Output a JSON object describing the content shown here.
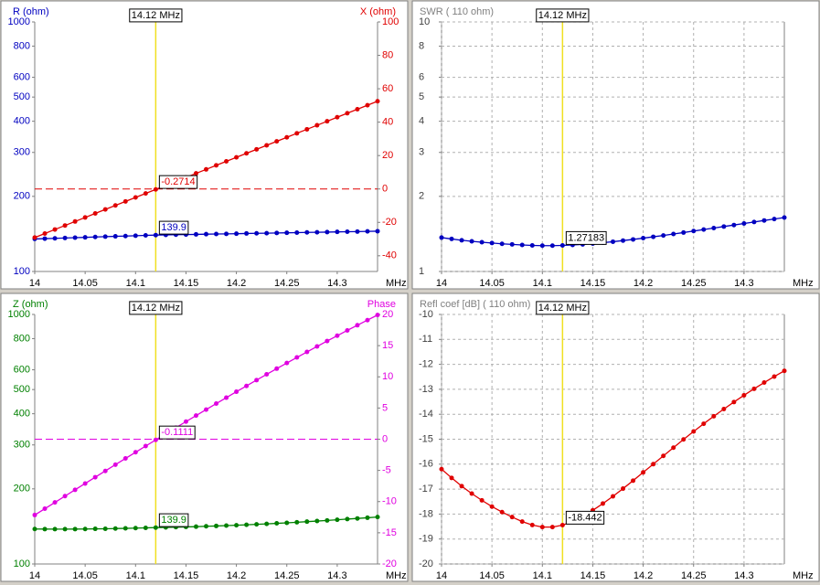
{
  "chart_data": [
    {
      "type": "line",
      "log_y": true,
      "grid": false,
      "x": [
        14,
        14.01,
        14.02,
        14.03,
        14.04,
        14.05,
        14.06,
        14.07,
        14.08,
        14.09,
        14.1,
        14.11,
        14.12,
        14.13,
        14.14,
        14.15,
        14.16,
        14.17,
        14.18,
        14.19,
        14.2,
        14.21,
        14.22,
        14.23,
        14.24,
        14.25,
        14.26,
        14.27,
        14.28,
        14.29,
        14.3,
        14.31,
        14.32,
        14.33,
        14.34
      ],
      "xlim": [
        14,
        14.34
      ],
      "xticks": [
        14,
        14.05,
        14.1,
        14.15,
        14.2,
        14.25,
        14.3
      ],
      "xlabel": "MHz",
      "ylim": [
        100,
        1000
      ],
      "yticks": [
        100,
        200,
        300,
        400,
        500,
        600,
        800,
        1000
      ],
      "y2lim": [
        -49.4,
        100
      ],
      "y2ticks": [
        -40,
        -20,
        0,
        20,
        40,
        60,
        80,
        100
      ],
      "marker": {
        "value": 14.12,
        "label": "14.12 MHz"
      },
      "series": [
        {
          "name": "R (ohm)",
          "color": "#0000c0",
          "values": [
            135,
            135.4,
            135.8,
            136.2,
            136.6,
            137,
            137.5,
            137.9,
            138.3,
            138.7,
            139.1,
            139.5,
            139.9,
            140.1,
            140.4,
            140.6,
            140.8,
            141.1,
            141.3,
            141.5,
            141.7,
            142,
            142.2,
            142.4,
            142.7,
            142.9,
            143.1,
            143.4,
            143.6,
            143.8,
            144.1,
            144.3,
            144.5,
            144.8,
            145
          ]
        },
        {
          "name": "X (ohm)",
          "color": "#e00000",
          "axis": "y2",
          "values": [
            -29.07,
            -26.67,
            -24.27,
            -21.87,
            -19.47,
            -17.07,
            -14.67,
            -12.27,
            -9.87,
            -7.47,
            -5.07,
            -2.67,
            -0.2714,
            2.13,
            4.53,
            6.93,
            9.33,
            11.73,
            14.13,
            16.53,
            18.93,
            21.33,
            23.73,
            26.13,
            28.53,
            30.93,
            33.33,
            35.73,
            38.13,
            40.53,
            42.93,
            45.33,
            47.73,
            50.13,
            52.53
          ]
        }
      ]
    },
    {
      "type": "line",
      "log_y": true,
      "grid": true,
      "x": [
        14,
        14.01,
        14.02,
        14.03,
        14.04,
        14.05,
        14.06,
        14.07,
        14.08,
        14.09,
        14.1,
        14.11,
        14.12,
        14.13,
        14.14,
        14.15,
        14.16,
        14.17,
        14.18,
        14.19,
        14.2,
        14.21,
        14.22,
        14.23,
        14.24,
        14.25,
        14.26,
        14.27,
        14.28,
        14.29,
        14.3,
        14.31,
        14.32,
        14.33,
        14.34
      ],
      "xlim": [
        14,
        14.34
      ],
      "xticks": [
        14,
        14.05,
        14.1,
        14.15,
        14.2,
        14.25,
        14.3
      ],
      "xlabel": "MHz",
      "ylim": [
        1,
        10
      ],
      "yticks": [
        1,
        2,
        3,
        4,
        5,
        6,
        8,
        10
      ],
      "marker": {
        "value": 14.12,
        "label": "14.12 MHz"
      },
      "series": [
        {
          "name": "SWR ( 110 ohm)",
          "color": "#0000c0",
          "values": [
            1.367,
            1.35,
            1.334,
            1.321,
            1.31,
            1.3,
            1.291,
            1.284,
            1.277,
            1.272,
            1.269,
            1.269,
            1.27183,
            1.277,
            1.284,
            1.294,
            1.304,
            1.316,
            1.33,
            1.344,
            1.36,
            1.377,
            1.394,
            1.413,
            1.432,
            1.452,
            1.472,
            1.493,
            1.514,
            1.535,
            1.557,
            1.579,
            1.601,
            1.623,
            1.645
          ]
        }
      ]
    },
    {
      "type": "line",
      "log_y": true,
      "grid": false,
      "x": [
        14,
        14.01,
        14.02,
        14.03,
        14.04,
        14.05,
        14.06,
        14.07,
        14.08,
        14.09,
        14.1,
        14.11,
        14.12,
        14.13,
        14.14,
        14.15,
        14.16,
        14.17,
        14.18,
        14.19,
        14.2,
        14.21,
        14.22,
        14.23,
        14.24,
        14.25,
        14.26,
        14.27,
        14.28,
        14.29,
        14.3,
        14.31,
        14.32,
        14.33,
        14.34
      ],
      "xlim": [
        14,
        14.34
      ],
      "xticks": [
        14,
        14.05,
        14.1,
        14.15,
        14.2,
        14.25,
        14.3
      ],
      "xlabel": "MHz",
      "ylim": [
        100,
        1000
      ],
      "yticks": [
        100,
        200,
        300,
        400,
        500,
        600,
        800,
        1000
      ],
      "y2lim": [
        -20,
        20
      ],
      "y2ticks": [
        -20,
        -15,
        -10,
        -5,
        0,
        5,
        10,
        15,
        20
      ],
      "marker": {
        "value": 14.12,
        "label": "14.12 MHz"
      },
      "series": [
        {
          "name": "Z (ohm)",
          "color": "#008000",
          "values": [
            138.1,
            138,
            137.95,
            137.9,
            138,
            138.1,
            138.3,
            138.4,
            138.7,
            138.9,
            139.2,
            139.5,
            139.9,
            140.1,
            140.5,
            140.8,
            141.1,
            141.6,
            142,
            142.5,
            143,
            143.6,
            144.2,
            144.8,
            145.5,
            146.2,
            146.9,
            147.8,
            148.6,
            149.4,
            150.4,
            151.3,
            152.2,
            153.2,
            154.2
          ]
        },
        {
          "name": "Phase",
          "color": "#e000e0",
          "axis": "y2",
          "values": [
            -12.15,
            -11.14,
            -10.13,
            -9.12,
            -8.11,
            -7.1,
            -6.09,
            -5.09,
            -4.08,
            -3.08,
            -2.09,
            -1.1,
            -0.1111,
            0.87,
            1.85,
            2.82,
            3.79,
            4.75,
            5.71,
            6.66,
            7.61,
            8.54,
            9.47,
            10.4,
            11.31,
            12.21,
            13.11,
            13.99,
            14.87,
            15.74,
            16.59,
            17.44,
            18.27,
            19.09,
            19.91
          ]
        }
      ]
    },
    {
      "type": "line",
      "log_y": false,
      "grid": true,
      "x": [
        14,
        14.01,
        14.02,
        14.03,
        14.04,
        14.05,
        14.06,
        14.07,
        14.08,
        14.09,
        14.1,
        14.11,
        14.12,
        14.13,
        14.14,
        14.15,
        14.16,
        14.17,
        14.18,
        14.19,
        14.2,
        14.21,
        14.22,
        14.23,
        14.24,
        14.25,
        14.26,
        14.27,
        14.28,
        14.29,
        14.3,
        14.31,
        14.32,
        14.33,
        14.34
      ],
      "xlim": [
        14,
        14.34
      ],
      "xticks": [
        14,
        14.05,
        14.1,
        14.15,
        14.2,
        14.25,
        14.3
      ],
      "xlabel": "MHz",
      "ylim": [
        -20,
        -10
      ],
      "yticks": [
        -20,
        -19,
        -18,
        -17,
        -16,
        -15,
        -14,
        -13,
        -12,
        -11,
        -10
      ],
      "marker": {
        "value": 14.12,
        "label": "14.12 MHz"
      },
      "series": [
        {
          "name": "Refl coef [dB] ( 110 ohm)",
          "color": "#e00000",
          "values": [
            -16.2,
            -16.55,
            -16.88,
            -17.18,
            -17.45,
            -17.7,
            -17.92,
            -18.12,
            -18.3,
            -18.44,
            -18.52,
            -18.52,
            -18.442,
            -18.3,
            -18.1,
            -17.85,
            -17.58,
            -17.29,
            -16.98,
            -16.66,
            -16.33,
            -16,
            -15.67,
            -15.34,
            -15.01,
            -14.69,
            -14.38,
            -14.08,
            -13.79,
            -13.51,
            -13.24,
            -12.98,
            -12.73,
            -12.49,
            -12.26
          ]
        }
      ]
    }
  ]
}
